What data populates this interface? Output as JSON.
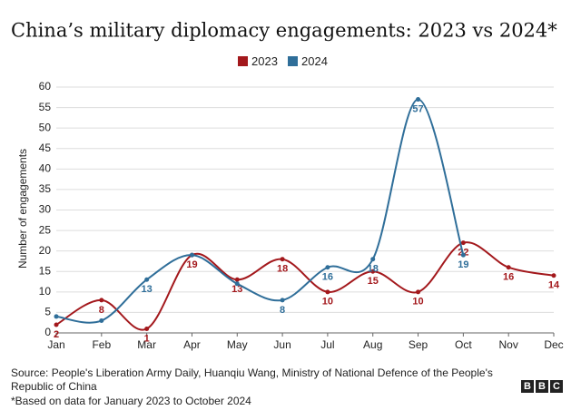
{
  "chart_data": {
    "type": "line",
    "title": "China’s military diplomacy engagements: 2023 vs 2024*",
    "y_label": "Number of engagements",
    "categories": [
      "Jan",
      "Feb",
      "Mar",
      "Apr",
      "May",
      "Jun",
      "Jul",
      "Aug",
      "Sep",
      "Oct",
      "Nov",
      "Dec"
    ],
    "series": [
      {
        "name": "2023",
        "color": "#a3181c",
        "values": [
          2,
          8,
          1,
          19,
          13,
          18,
          10,
          15,
          10,
          22,
          16,
          14
        ]
      },
      {
        "name": "2024",
        "color": "#2f6e99",
        "values": [
          4,
          3,
          13,
          19,
          12,
          8,
          16,
          18,
          57,
          19,
          null,
          null
        ],
        "value_labels": [
          null,
          null,
          "13",
          null,
          null,
          "8",
          "16",
          "18",
          "57",
          "19",
          null,
          null
        ]
      }
    ],
    "ylim": [
      0,
      60
    ],
    "yticks": [
      0,
      5,
      10,
      15,
      20,
      25,
      30,
      35,
      40,
      45,
      50,
      55,
      60
    ],
    "grid": true,
    "source": "Source: People's Liberation Army Daily, Huanqiu Wang, Ministry of National Defence of the People's Republic of China",
    "note": "*Based on data for January 2023 to October 2024",
    "logo": [
      "B",
      "B",
      "C"
    ]
  }
}
